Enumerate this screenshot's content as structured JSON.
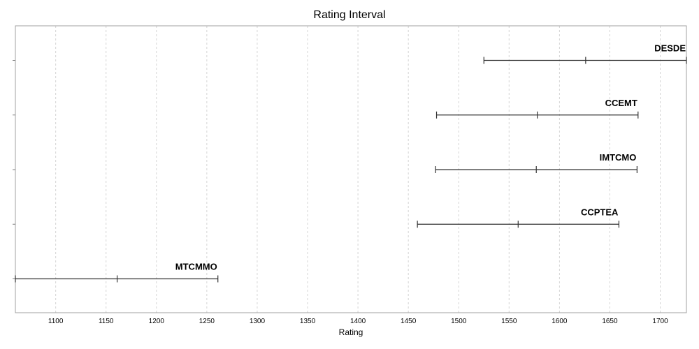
{
  "chart_data": {
    "type": "interval",
    "title": "Rating Interval",
    "xlabel": "Rating",
    "ylabel": "",
    "xlim": [
      1060,
      1726
    ],
    "xticks": [
      1100,
      1150,
      1200,
      1250,
      1300,
      1350,
      1400,
      1450,
      1500,
      1550,
      1600,
      1650,
      1700
    ],
    "grid": true,
    "series": [
      {
        "name": "DESDE",
        "low": 1525,
        "mid": 1626,
        "high": 1726
      },
      {
        "name": "CCEMT",
        "low": 1478,
        "mid": 1578,
        "high": 1678
      },
      {
        "name": "IMTCMO",
        "low": 1477,
        "mid": 1577,
        "high": 1677
      },
      {
        "name": "CCPTEA",
        "low": 1459,
        "mid": 1559,
        "high": 1659
      },
      {
        "name": "MTCMMO",
        "low": 1060,
        "mid": 1161,
        "high": 1261
      }
    ]
  }
}
